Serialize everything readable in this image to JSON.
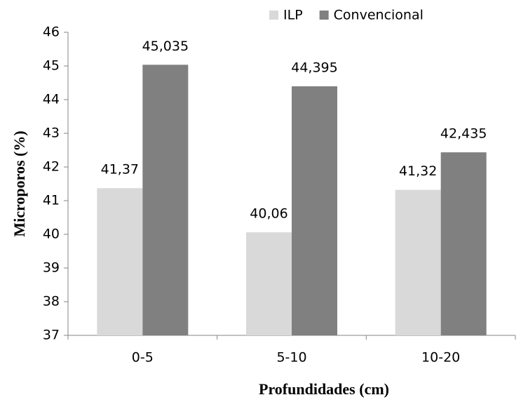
{
  "chart_data": {
    "type": "bar",
    "categories": [
      "0-5",
      "5-10",
      "10-20"
    ],
    "series": [
      {
        "name": "ILP",
        "color": "#d9d9d9",
        "values": [
          41.37,
          40.06,
          41.32
        ],
        "value_labels": [
          "41,37",
          "40,06",
          "41,32"
        ]
      },
      {
        "name": "Convencional",
        "color": "#808080",
        "values": [
          45.035,
          44.395,
          42.435
        ],
        "value_labels": [
          "45,035",
          "44,395",
          "42,435"
        ]
      }
    ],
    "ylim": [
      37,
      46
    ],
    "yticks": [
      37,
      38,
      39,
      40,
      41,
      42,
      43,
      44,
      45,
      46
    ],
    "y_label": "Microporos (%)",
    "x_label": "Profundidades (cm)",
    "legend": "top",
    "grid": false
  }
}
